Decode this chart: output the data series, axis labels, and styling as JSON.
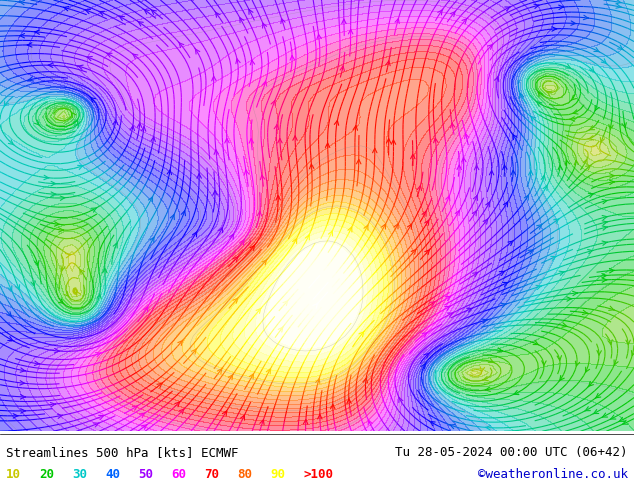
{
  "title_left": "Streamlines 500 hPa [kts] ECMWF",
  "title_right": "Tu 28-05-2024 00:00 UTC (06+42)",
  "watermark": "©weatheronline.co.uk",
  "legend_values": [
    "10",
    "20",
    "30",
    "40",
    "50",
    "60",
    "70",
    "80",
    "90",
    ">100"
  ],
  "legend_colors": [
    "#c8c800",
    "#00c800",
    "#00c8c8",
    "#0064ff",
    "#a000ff",
    "#ff00ff",
    "#ff0000",
    "#ff6400",
    "#ffff00",
    "#ffffff"
  ],
  "background_color": "#ffffff",
  "fig_width": 6.34,
  "fig_height": 4.9,
  "dpi": 100,
  "title_fontsize": 9,
  "legend_fontsize": 9,
  "font_color": "#000000",
  "watermark_color": "#0000cc",
  "bottom_bar_color": "#ffffff",
  "streamline_colors": {
    "low": "#c8c800",
    "medium_low": "#00c800",
    "medium": "#00c8c8",
    "medium_high": "#0064ff",
    "high": "#ff0000"
  }
}
